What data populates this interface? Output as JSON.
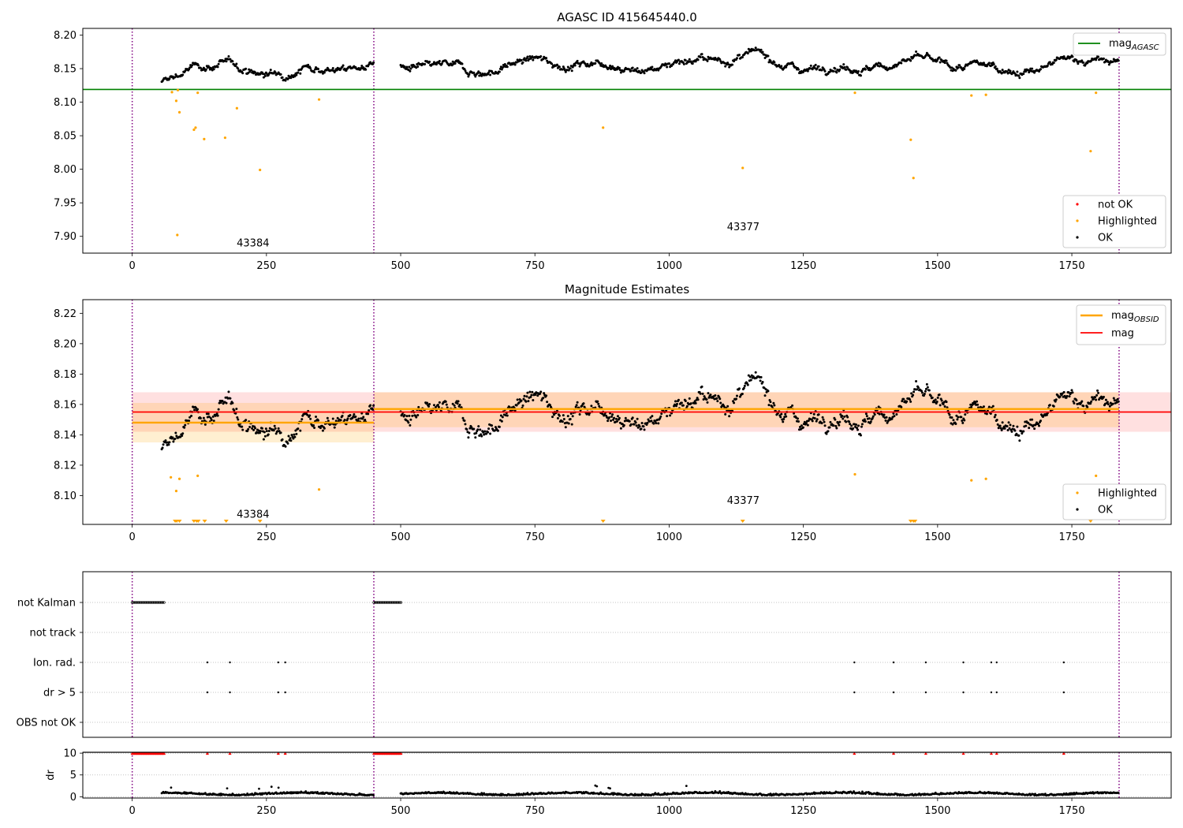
{
  "chart_data": [
    {
      "type": "scatter",
      "title": "AGASC ID 415645440.0",
      "xlim": [
        -92,
        1935
      ],
      "ylim": [
        7.875,
        8.21
      ],
      "yticks": [
        7.9,
        7.95,
        8.0,
        8.05,
        8.1,
        8.15,
        8.2
      ],
      "xticks": [
        0,
        250,
        500,
        750,
        1000,
        1250,
        1500,
        1750,
        2000
      ],
      "grid": false,
      "vlines": [
        0,
        450,
        1838
      ],
      "agasc_mag": 8.119,
      "agasc_line_x": [
        -92,
        1935
      ],
      "legends": [
        {
          "position": "top-right",
          "entries": [
            {
              "label": "mag",
              "sub": "AGASC",
              "color": "#008000",
              "kind": "line"
            }
          ]
        },
        {
          "position": "bottom-right",
          "entries": [
            {
              "label": "not OK",
              "color": "#ff0000",
              "kind": "dot"
            },
            {
              "label": "Highlighted",
              "color": "#ffa500",
              "kind": "dot"
            },
            {
              "label": "OK",
              "color": "#000000",
              "kind": "dot"
            }
          ]
        }
      ],
      "annotations": [
        {
          "text": "43384",
          "x": 225,
          "y": 7.891
        },
        {
          "text": "43377",
          "x": 1138,
          "y": 7.915
        }
      ],
      "segments": [
        {
          "x0": 55,
          "x1": 450,
          "mean": 8.148
        },
        {
          "x0": 500,
          "x1": 1838,
          "mean": 8.157
        }
      ],
      "highlighted_points": [
        [
          74,
          8.115
        ],
        [
          82,
          8.102
        ],
        [
          85,
          8.118
        ],
        [
          88,
          8.085
        ],
        [
          84,
          7.902
        ],
        [
          115,
          8.059
        ],
        [
          118,
          8.062
        ],
        [
          122,
          8.114
        ],
        [
          134,
          8.045
        ],
        [
          173,
          8.047
        ],
        [
          195,
          8.091
        ],
        [
          238,
          7.999
        ],
        [
          348,
          8.104
        ],
        [
          877,
          8.062
        ],
        [
          1137,
          8.002
        ],
        [
          1346,
          8.114
        ],
        [
          1450,
          8.044
        ],
        [
          1455,
          7.987
        ],
        [
          1563,
          8.11
        ],
        [
          1590,
          8.111
        ],
        [
          1785,
          8.027
        ],
        [
          1795,
          8.114
        ]
      ]
    },
    {
      "type": "scatter",
      "title": "Magnitude Estimates",
      "xlim": [
        -92,
        1935
      ],
      "ylim": [
        8.081,
        8.229
      ],
      "yticks": [
        8.1,
        8.12,
        8.14,
        8.16,
        8.18,
        8.2,
        8.22
      ],
      "xticks": [
        0,
        250,
        500,
        750,
        1000,
        1250,
        1500,
        1750,
        2000
      ],
      "grid": false,
      "vlines": [
        0,
        450,
        1838
      ],
      "mag": 8.155,
      "mag_band": [
        8.142,
        8.168
      ],
      "obsid_mags": [
        {
          "x0": 0,
          "x1": 450,
          "mag": 8.148,
          "band": [
            8.135,
            8.161
          ]
        },
        {
          "x0": 450,
          "x1": 1838,
          "mag": 8.157,
          "band": [
            8.145,
            8.168
          ]
        }
      ],
      "legends": [
        {
          "position": "top-right",
          "entries": [
            {
              "label": "mag",
              "sub": "OBSID",
              "color": "#ffa500",
              "kind": "line"
            },
            {
              "label": "mag",
              "color": "#ff0000",
              "kind": "line"
            }
          ]
        },
        {
          "position": "bottom-right",
          "entries": [
            {
              "label": "Highlighted",
              "color": "#ffa500",
              "kind": "dot"
            },
            {
              "label": "OK",
              "color": "#000000",
              "kind": "dot"
            }
          ]
        }
      ],
      "annotations": [
        {
          "text": "43384",
          "x": 225,
          "y": 8.088
        },
        {
          "text": "43377",
          "x": 1138,
          "y": 8.097
        }
      ],
      "highlighted_points": [
        [
          72,
          8.112
        ],
        [
          82,
          8.103
        ],
        [
          88,
          8.111
        ],
        [
          122,
          8.113
        ],
        [
          348,
          8.104
        ],
        [
          1346,
          8.114
        ],
        [
          1563,
          8.11
        ],
        [
          1590,
          8.111
        ],
        [
          1795,
          8.113
        ]
      ],
      "below_range_x": [
        80,
        83,
        88,
        115,
        120,
        123,
        135,
        175,
        238,
        877,
        1137,
        1450,
        1455,
        1458,
        1785
      ]
    },
    {
      "type": "scatter",
      "xlim": [
        -92,
        1935
      ],
      "xticks": [
        0,
        250,
        500,
        750,
        1000,
        1250,
        1500,
        1750,
        2000
      ],
      "vlines": [
        0,
        450,
        1838
      ],
      "flag_rows": [
        "not Kalman",
        "not track",
        "Ion. rad.",
        "dr > 5",
        "OBS not OK"
      ],
      "flag_points": {
        "not Kalman": [
          [
            0,
            60
          ],
          [
            450,
            502
          ]
        ],
        "Ion. rad.": [
          140,
          182,
          272,
          285,
          1345,
          1418,
          1478,
          1548,
          1600,
          1610,
          1735
        ],
        "dr > 5": [
          140,
          182,
          272,
          285,
          1345,
          1418,
          1478,
          1548,
          1600,
          1610,
          1735
        ]
      },
      "dr_ylabel": "dr",
      "dr_yticks": [
        0,
        5,
        10
      ],
      "dr_ylim": [
        -0.3,
        10.2
      ],
      "dr_threshold": 10,
      "dr_capped_x": [
        140,
        182,
        272,
        285,
        1345,
        1418,
        1478,
        1548,
        1600,
        1610,
        1735
      ]
    }
  ],
  "colors": {
    "ok": "#000000",
    "highlighted": "#ffa500",
    "not_ok": "#ff0000",
    "agasc": "#008000",
    "mag": "#ff0000",
    "obsid": "#ffa500",
    "vline": "#800080"
  }
}
